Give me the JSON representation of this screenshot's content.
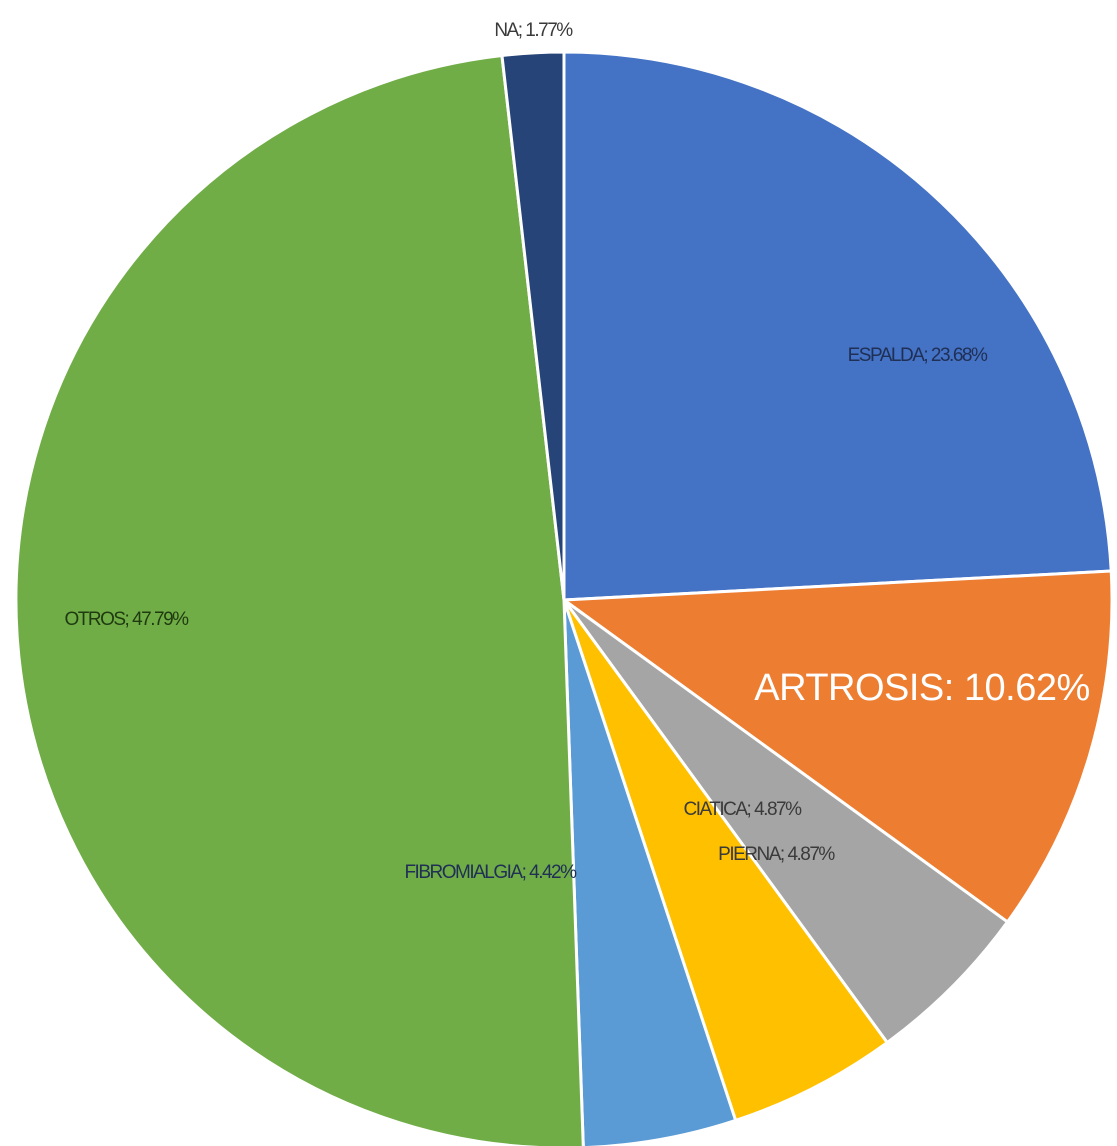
{
  "chart_data": {
    "type": "pie",
    "title": "",
    "start_angle_deg": 0,
    "direction": "clockwise",
    "slices": [
      {
        "name": "ESPALDA",
        "value": 23.68,
        "label": "ESPALDA; 23.68%",
        "color": "#4472C4",
        "label_color": "#1F2F55"
      },
      {
        "name": "ARTROSIS",
        "value": 10.62,
        "label": "ARTROSIS: 10.62%",
        "color": "#ED7D31",
        "label_color": "#FFFFFF",
        "emphasis": true
      },
      {
        "name": "PIERNA",
        "value": 4.87,
        "label": "PIERNA; 4.87%",
        "color": "#A5A5A5",
        "label_color": "#3A3A3A"
      },
      {
        "name": "CIATICA",
        "value": 4.87,
        "label": "CIATICA; 4.87%",
        "color": "#FFC000",
        "label_color": "#3A3A3A"
      },
      {
        "name": "FIBROMIALGIA",
        "value": 4.42,
        "label": "FIBROMIALGIA; 4.42%",
        "color": "#5B9BD5",
        "label_color": "#1F2F55"
      },
      {
        "name": "OTROS",
        "value": 47.79,
        "label": "OTROS; 47.79%",
        "color": "#70AD47",
        "label_color": "#1F3A10"
      },
      {
        "name": "NA",
        "value": 1.77,
        "label": "NA; 1.77%",
        "color": "#264478",
        "label_color": "#3A3A3A"
      }
    ]
  }
}
